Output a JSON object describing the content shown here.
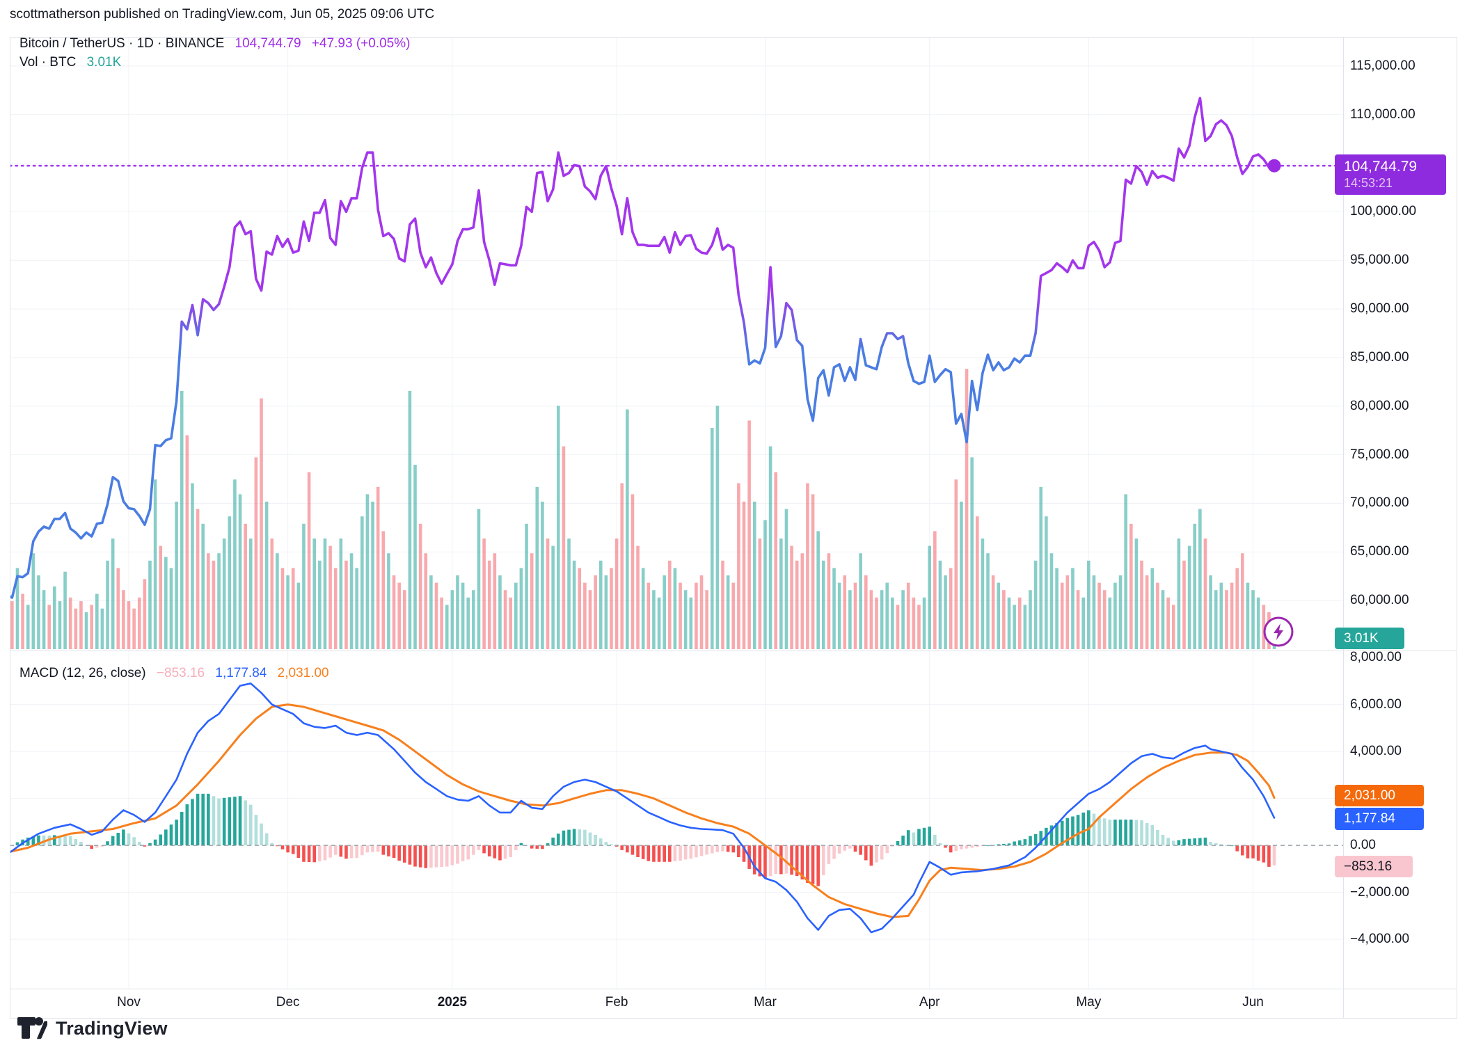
{
  "header": {
    "published_line": "scottmatherson published on TradingView.com, Jun 05, 2025 09:06 UTC"
  },
  "legend": {
    "symbol_title": "Bitcoin / TetherUS · 1D · BINANCE",
    "last_price": "104,744.79",
    "change": "+47.93",
    "change_pct": "(+0.05%)",
    "vol_label": "Vol · BTC",
    "vol_value": "3.01K"
  },
  "macd_legend": {
    "title": "MACD (12, 26, close)",
    "hist_value": "−853.16",
    "macd_value": "1,177.84",
    "signal_value": "2,031.00"
  },
  "price_badge": {
    "price": "104,744.79",
    "countdown": "14:53:21",
    "color": "#8F2BDF"
  },
  "volume_badge": {
    "value": "3.01K",
    "color": "#26A69A"
  },
  "macd_badges": {
    "signal": {
      "value": "2,031.00",
      "color": "#F5690A"
    },
    "macd": {
      "value": "1,177.84",
      "color": "#2962FF"
    },
    "hist": {
      "value": "−853.16",
      "color": "#F9C6CF",
      "text_color": "#131722"
    }
  },
  "price_axis": {
    "ticks": [
      {
        "label": "115,000.00",
        "v": 115
      },
      {
        "label": "110,000.00",
        "v": 110
      },
      {
        "label": "100,000.00",
        "v": 100
      },
      {
        "label": "95,000.00",
        "v": 95
      },
      {
        "label": "90,000.00",
        "v": 90
      },
      {
        "label": "85,000.00",
        "v": 85
      },
      {
        "label": "80,000.00",
        "v": 80
      },
      {
        "label": "75,000.00",
        "v": 75
      },
      {
        "label": "70,000.00",
        "v": 70
      },
      {
        "label": "65,000.00",
        "v": 65
      },
      {
        "label": "60,000.00",
        "v": 60
      }
    ]
  },
  "macd_axis": {
    "ticks": [
      {
        "label": "8,000.00",
        "v": 8000
      },
      {
        "label": "6,000.00",
        "v": 6000
      },
      {
        "label": "4,000.00",
        "v": 4000
      },
      {
        "label": "0.00",
        "v": 0
      },
      {
        "label": "−2,000.00",
        "v": -2000
      },
      {
        "label": "−4,000.00",
        "v": -4000
      }
    ]
  },
  "time_axis": {
    "labels": [
      {
        "label": "Nov",
        "d": 23,
        "bold": false
      },
      {
        "label": "Dec",
        "d": 53,
        "bold": false
      },
      {
        "label": "2025",
        "d": 84,
        "bold": true
      },
      {
        "label": "Feb",
        "d": 115,
        "bold": false
      },
      {
        "label": "Mar",
        "d": 143,
        "bold": false
      },
      {
        "label": "Apr",
        "d": 174,
        "bold": false
      },
      {
        "label": "May",
        "d": 204,
        "bold": false
      },
      {
        "label": "Jun",
        "d": 235,
        "bold": false
      }
    ]
  },
  "watermark": {
    "brand": "TradingView"
  },
  "colors": {
    "line_purple": "#A336EC",
    "line_blue": "#4A7DE2",
    "dotted_price": "#A53CF0",
    "price_dot": "#9B2BE2",
    "macd_line": "#2962FF",
    "signal_line": "#F7801E",
    "hist_up_grow": "#26A69A",
    "hist_up_fall": "#B2DFDB",
    "hist_dn_grow": "#F4504F",
    "hist_dn_fade": "#F9C9CE",
    "vol_up": "rgba(38,166,154,0.55)",
    "vol_down": "rgba(242,84,91,0.5)",
    "grid": "#F0F2F6",
    "frame": "#E0E3EB",
    "zero_dash": "#9AA0AA",
    "text": "#131722",
    "lightning": "#9C27B0"
  },
  "chart_data": {
    "type": "line",
    "title": "Bitcoin / TetherUS 1D BINANCE with volume and MACD(12,26,close)",
    "x_unit": "daily, day 0 = 2024-10-09, day 239 = 2025-06-05",
    "price_pane": {
      "ylim_thousands": [
        55,
        118
      ],
      "gridlines_every": 5000,
      "last_price": 104744.79,
      "change": 47.93,
      "change_pct": 0.05
    },
    "macd_pane": {
      "ylim": [
        -6100,
        8300
      ],
      "macd_last": 1177.84,
      "signal_last": 2031.0,
      "hist_last": -853.16
    },
    "price_usd_k": [
      60.6,
      60.3,
      62.5,
      62.4,
      62.8,
      66.1,
      67.1,
      67.6,
      67.4,
      68.4,
      68.4,
      69.0,
      67.4,
      67.0,
      66.4,
      67.0,
      66.6,
      67.9,
      68.0,
      69.9,
      72.7,
      72.3,
      70.2,
      69.5,
      69.4,
      68.7,
      67.8,
      69.4,
      76.0,
      75.9,
      76.5,
      76.7,
      80.5,
      88.7,
      87.9,
      90.4,
      87.3,
      91.0,
      90.6,
      89.9,
      90.5,
      92.3,
      94.3,
      98.4,
      99.0,
      97.7,
      98.0,
      93.1,
      91.9,
      95.9,
      95.6,
      97.5,
      96.4,
      97.2,
      95.8,
      96.0,
      99.0,
      97.0,
      99.9,
      99.9,
      101.2,
      97.3,
      96.6,
      101.1,
      100.0,
      101.4,
      101.4,
      104.5,
      106.1,
      106.1,
      100.2,
      97.5,
      97.8,
      97.2,
      95.2,
      94.9,
      98.7,
      99.3,
      95.8,
      94.3,
      95.3,
      93.7,
      92.6,
      93.6,
      94.6,
      97.0,
      98.2,
      98.2,
      98.4,
      102.2,
      96.9,
      95.0,
      92.5,
      94.7,
      94.6,
      94.5,
      94.5,
      96.5,
      100.5,
      100.0,
      104.0,
      104.1,
      101.1,
      102.3,
      106.1,
      103.7,
      104.0,
      104.8,
      104.7,
      102.6,
      102.1,
      101.3,
      103.7,
      104.7,
      102.4,
      100.6,
      97.7,
      101.4,
      97.9,
      96.6,
      96.6,
      96.5,
      96.5,
      96.5,
      97.4,
      95.8,
      97.9,
      96.6,
      97.5,
      97.6,
      96.2,
      95.8,
      95.7,
      96.6,
      98.3,
      96.1,
      96.6,
      96.3,
      91.4,
      88.6,
      84.3,
      84.7,
      84.4,
      86.0,
      94.3,
      86.1,
      87.2,
      90.6,
      89.9,
      86.8,
      86.2,
      80.7,
      78.5,
      82.9,
      83.7,
      81.1,
      84.0,
      84.3,
      82.6,
      84.0,
      82.7,
      86.9,
      84.2,
      84.0,
      83.8,
      86.1,
      87.5,
      87.5,
      86.9,
      87.2,
      84.4,
      82.6,
      82.3,
      82.5,
      85.2,
      82.5,
      83.2,
      83.8,
      83.5,
      78.2,
      79.2,
      76.3,
      82.6,
      79.6,
      83.4,
      85.3,
      83.7,
      84.5,
      83.7,
      84.0,
      84.9,
      84.5,
      85.2,
      85.2,
      87.5,
      93.4,
      93.7,
      94.0,
      94.7,
      94.3,
      93.8,
      95.0,
      94.2,
      94.2,
      96.5,
      96.9,
      96.0,
      94.3,
      94.8,
      96.8,
      97.0,
      103.3,
      102.9,
      104.7,
      104.1,
      102.8,
      104.2,
      103.5,
      103.7,
      103.5,
      103.2,
      106.5,
      105.6,
      106.8,
      109.7,
      111.7,
      107.3,
      107.8,
      109.0,
      109.4,
      108.9,
      107.8,
      105.6,
      103.9,
      104.6,
      105.7,
      105.9,
      105.4,
      104.6,
      104.74
    ],
    "volume_k_btc": [
      18,
      13,
      22,
      15,
      12,
      26,
      20,
      16,
      12,
      17,
      13,
      21,
      14,
      11,
      13,
      10,
      12,
      15,
      11,
      24,
      30,
      22,
      16,
      13,
      11,
      14,
      19,
      24,
      46,
      28,
      25,
      22,
      40,
      70,
      58,
      45,
      38,
      34,
      26,
      24,
      26,
      30,
      36,
      46,
      42,
      34,
      30,
      52,
      68,
      40,
      30,
      26,
      22,
      20,
      22,
      18,
      34,
      48,
      30,
      24,
      30,
      28,
      22,
      30,
      24,
      26,
      22,
      36,
      42,
      40,
      44,
      32,
      26,
      20,
      18,
      16,
      70,
      50,
      34,
      26,
      20,
      18,
      14,
      12,
      16,
      20,
      18,
      14,
      16,
      38,
      30,
      24,
      26,
      20,
      16,
      14,
      18,
      22,
      34,
      26,
      44,
      40,
      30,
      28,
      66,
      55,
      30,
      24,
      22,
      18,
      16,
      20,
      24,
      20,
      22,
      30,
      45,
      65,
      42,
      28,
      22,
      18,
      16,
      14,
      20,
      24,
      22,
      18,
      16,
      14,
      18,
      20,
      16,
      60,
      66,
      24,
      20,
      18,
      45,
      40,
      62,
      40,
      30,
      35,
      55,
      48,
      30,
      38,
      28,
      24,
      26,
      45,
      42,
      32,
      24,
      26,
      22,
      18,
      20,
      16,
      18,
      26,
      20,
      16,
      14,
      16,
      18,
      14,
      12,
      16,
      18,
      14,
      12,
      14,
      28,
      32,
      24,
      20,
      22,
      46,
      40,
      76,
      52,
      36,
      30,
      26,
      20,
      18,
      16,
      14,
      12,
      14,
      12,
      16,
      24,
      44,
      36,
      26,
      22,
      18,
      20,
      22,
      16,
      14,
      24,
      20,
      18,
      16,
      14,
      18,
      20,
      42,
      34,
      30,
      24,
      20,
      22,
      18,
      16,
      14,
      12,
      30,
      24,
      28,
      34,
      38,
      30,
      20,
      16,
      18,
      16,
      18,
      22,
      26,
      18,
      16,
      14,
      12,
      10,
      3.01
    ],
    "macd_keypoints": [
      [
        0,
        -400
      ],
      [
        3,
        100
      ],
      [
        6,
        500
      ],
      [
        9,
        750
      ],
      [
        12,
        900
      ],
      [
        14,
        700
      ],
      [
        16,
        450
      ],
      [
        18,
        600
      ],
      [
        20,
        1100
      ],
      [
        22,
        1500
      ],
      [
        24,
        1300
      ],
      [
        26,
        1000
      ],
      [
        28,
        1400
      ],
      [
        30,
        2100
      ],
      [
        32,
        2800
      ],
      [
        34,
        3900
      ],
      [
        36,
        4800
      ],
      [
        38,
        5300
      ],
      [
        40,
        5600
      ],
      [
        42,
        6200
      ],
      [
        44,
        6800
      ],
      [
        46,
        6900
      ],
      [
        48,
        6500
      ],
      [
        50,
        6000
      ],
      [
        52,
        5800
      ],
      [
        54,
        5600
      ],
      [
        56,
        5200
      ],
      [
        58,
        5050
      ],
      [
        60,
        5000
      ],
      [
        62,
        5100
      ],
      [
        64,
        4800
      ],
      [
        66,
        4700
      ],
      [
        68,
        4800
      ],
      [
        70,
        4700
      ],
      [
        73,
        4100
      ],
      [
        75,
        3600
      ],
      [
        77,
        3100
      ],
      [
        79,
        2700
      ],
      [
        81,
        2400
      ],
      [
        83,
        2100
      ],
      [
        85,
        1950
      ],
      [
        87,
        1900
      ],
      [
        89,
        2100
      ],
      [
        91,
        1700
      ],
      [
        93,
        1400
      ],
      [
        95,
        1400
      ],
      [
        97,
        1900
      ],
      [
        99,
        1600
      ],
      [
        101,
        1550
      ],
      [
        103,
        2100
      ],
      [
        105,
        2500
      ],
      [
        107,
        2700
      ],
      [
        109,
        2800
      ],
      [
        111,
        2700
      ],
      [
        113,
        2500
      ],
      [
        115,
        2300
      ],
      [
        117,
        2000
      ],
      [
        119,
        1700
      ],
      [
        121,
        1400
      ],
      [
        123,
        1200
      ],
      [
        125,
        1000
      ],
      [
        127,
        850
      ],
      [
        129,
        750
      ],
      [
        131,
        700
      ],
      [
        133,
        680
      ],
      [
        135,
        650
      ],
      [
        137,
        500
      ],
      [
        139,
        -100
      ],
      [
        141,
        -900
      ],
      [
        143,
        -1400
      ],
      [
        145,
        -1550
      ],
      [
        147,
        -1900
      ],
      [
        149,
        -2400
      ],
      [
        151,
        -3100
      ],
      [
        153,
        -3600
      ],
      [
        155,
        -3000
      ],
      [
        157,
        -2750
      ],
      [
        159,
        -2700
      ],
      [
        161,
        -3100
      ],
      [
        163,
        -3700
      ],
      [
        165,
        -3550
      ],
      [
        167,
        -3100
      ],
      [
        169,
        -2600
      ],
      [
        171,
        -2100
      ],
      [
        172,
        -1600
      ],
      [
        174,
        -700
      ],
      [
        176,
        -950
      ],
      [
        178,
        -1250
      ],
      [
        180,
        -1150
      ],
      [
        183,
        -1100
      ],
      [
        186,
        -1000
      ],
      [
        189,
        -850
      ],
      [
        192,
        -500
      ],
      [
        194,
        -100
      ],
      [
        196,
        400
      ],
      [
        198,
        900
      ],
      [
        200,
        1400
      ],
      [
        202,
        1800
      ],
      [
        204,
        2200
      ],
      [
        206,
        2400
      ],
      [
        208,
        2700
      ],
      [
        210,
        3100
      ],
      [
        212,
        3500
      ],
      [
        214,
        3800
      ],
      [
        216,
        3900
      ],
      [
        218,
        3750
      ],
      [
        220,
        3700
      ],
      [
        222,
        3950
      ],
      [
        224,
        4150
      ],
      [
        226,
        4250
      ],
      [
        227,
        4100
      ],
      [
        229,
        4000
      ],
      [
        231,
        3900
      ],
      [
        233,
        3300
      ],
      [
        235,
        2800
      ],
      [
        237,
        2100
      ],
      [
        239,
        1177.84
      ]
    ],
    "signal_keypoints": [
      [
        0,
        -300
      ],
      [
        4,
        -100
      ],
      [
        8,
        250
      ],
      [
        12,
        500
      ],
      [
        16,
        600
      ],
      [
        20,
        700
      ],
      [
        24,
        950
      ],
      [
        28,
        1150
      ],
      [
        32,
        1700
      ],
      [
        36,
        2600
      ],
      [
        40,
        3600
      ],
      [
        44,
        4700
      ],
      [
        47,
        5400
      ],
      [
        50,
        5900
      ],
      [
        53,
        6000
      ],
      [
        56,
        5900
      ],
      [
        59,
        5700
      ],
      [
        62,
        5500
      ],
      [
        65,
        5300
      ],
      [
        68,
        5100
      ],
      [
        71,
        4900
      ],
      [
        74,
        4500
      ],
      [
        77,
        4000
      ],
      [
        80,
        3500
      ],
      [
        83,
        3000
      ],
      [
        86,
        2600
      ],
      [
        89,
        2300
      ],
      [
        92,
        2100
      ],
      [
        95,
        1900
      ],
      [
        98,
        1750
      ],
      [
        101,
        1700
      ],
      [
        104,
        1800
      ],
      [
        107,
        2000
      ],
      [
        110,
        2200
      ],
      [
        113,
        2350
      ],
      [
        116,
        2350
      ],
      [
        119,
        2200
      ],
      [
        122,
        2000
      ],
      [
        125,
        1700
      ],
      [
        128,
        1400
      ],
      [
        131,
        1150
      ],
      [
        134,
        950
      ],
      [
        137,
        800
      ],
      [
        140,
        500
      ],
      [
        143,
        0
      ],
      [
        146,
        -500
      ],
      [
        149,
        -1100
      ],
      [
        152,
        -1700
      ],
      [
        155,
        -2200
      ],
      [
        158,
        -2500
      ],
      [
        161,
        -2700
      ],
      [
        164,
        -2900
      ],
      [
        167,
        -3050
      ],
      [
        170,
        -3000
      ],
      [
        172,
        -2300
      ],
      [
        174,
        -1500
      ],
      [
        176,
        -1050
      ],
      [
        178,
        -950
      ],
      [
        181,
        -1000
      ],
      [
        184,
        -1050
      ],
      [
        187,
        -1000
      ],
      [
        190,
        -900
      ],
      [
        193,
        -700
      ],
      [
        196,
        -350
      ],
      [
        199,
        100
      ],
      [
        202,
        500
      ],
      [
        204,
        700
      ],
      [
        206,
        1200
      ],
      [
        209,
        1800
      ],
      [
        212,
        2400
      ],
      [
        215,
        2900
      ],
      [
        218,
        3300
      ],
      [
        221,
        3600
      ],
      [
        224,
        3850
      ],
      [
        227,
        3950
      ],
      [
        230,
        3950
      ],
      [
        232,
        3850
      ],
      [
        234,
        3600
      ],
      [
        236,
        3100
      ],
      [
        238,
        2550
      ],
      [
        239,
        2031
      ]
    ]
  }
}
